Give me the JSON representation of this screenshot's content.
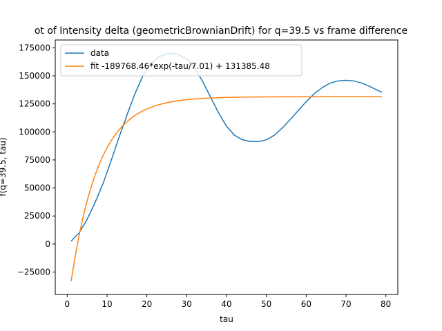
{
  "chart_data": {
    "type": "line",
    "title": "ot of Intensity delta (geometricBrownianDrift) for q=39.5 vs frame difference",
    "xlabel": "tau",
    "ylabel": "f(q=39.5, tau)",
    "xlim": [
      -3,
      83
    ],
    "ylim": [
      -45000,
      182000
    ],
    "xticks": [
      0,
      10,
      20,
      30,
      40,
      50,
      60,
      70,
      80
    ],
    "yticks": [
      -25000,
      0,
      25000,
      50000,
      75000,
      100000,
      125000,
      150000,
      175000
    ],
    "grid": false,
    "legend_position": "top-left",
    "series": [
      {
        "name": "data",
        "color": "#1f77b4",
        "x": [
          1,
          3,
          5,
          7,
          9,
          11,
          13,
          15,
          17,
          19,
          21,
          23,
          25,
          26.5,
          28,
          30,
          32,
          34,
          36,
          38,
          40,
          42,
          44,
          46,
          48,
          49,
          50,
          52,
          54,
          56,
          58,
          60,
          62,
          64,
          66,
          68,
          70,
          72,
          74,
          76,
          78,
          79
        ],
        "y": [
          2500,
          10000,
          22000,
          37000,
          54000,
          74000,
          95000,
          115000,
          134000,
          150000,
          161000,
          167000,
          169500,
          170000,
          169000,
          165000,
          157000,
          145000,
          131000,
          117000,
          105000,
          97000,
          93000,
          91500,
          91500,
          92000,
          93000,
          97000,
          103500,
          111000,
          119000,
          127000,
          134000,
          139500,
          143500,
          145500,
          146000,
          145500,
          143500,
          140500,
          137000,
          135500
        ]
      },
      {
        "name": "fit -189768.46*exp(-tau/7.01) + 131385.48",
        "color": "#ff7f0e",
        "fit": {
          "a": -189768.46,
          "tau": 7.01,
          "c": 131385.48
        },
        "x_range": [
          1,
          79
        ]
      }
    ]
  }
}
